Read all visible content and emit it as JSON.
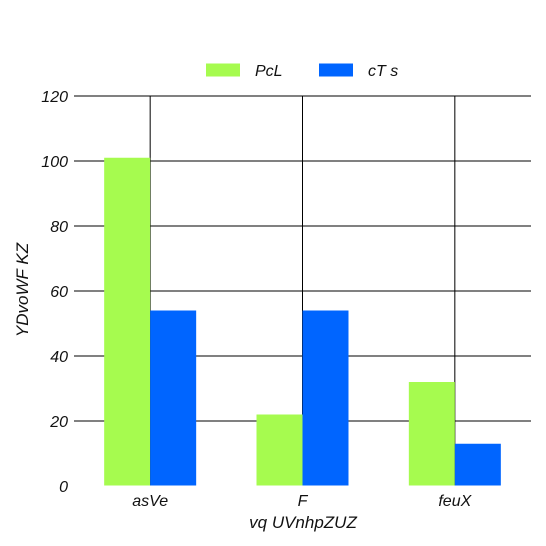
{
  "chart_data": {
    "type": "bar",
    "categories": [
      "asVe",
      "F",
      "feuX"
    ],
    "series": [
      {
        "name": "PcL",
        "values": [
          101,
          22,
          32
        ],
        "color": "#a6fb4f"
      },
      {
        "name": "cT s",
        "values": [
          54,
          54,
          13
        ],
        "color": "#0065ff"
      }
    ],
    "xlabel": "vq UVnhpZUZ",
    "ylabel": "YDvoWF KZ",
    "ylim": [
      0,
      120
    ],
    "yticks": [
      0,
      20,
      40,
      60,
      80,
      100,
      120
    ],
    "grid": true,
    "legend_position": "top-center"
  }
}
